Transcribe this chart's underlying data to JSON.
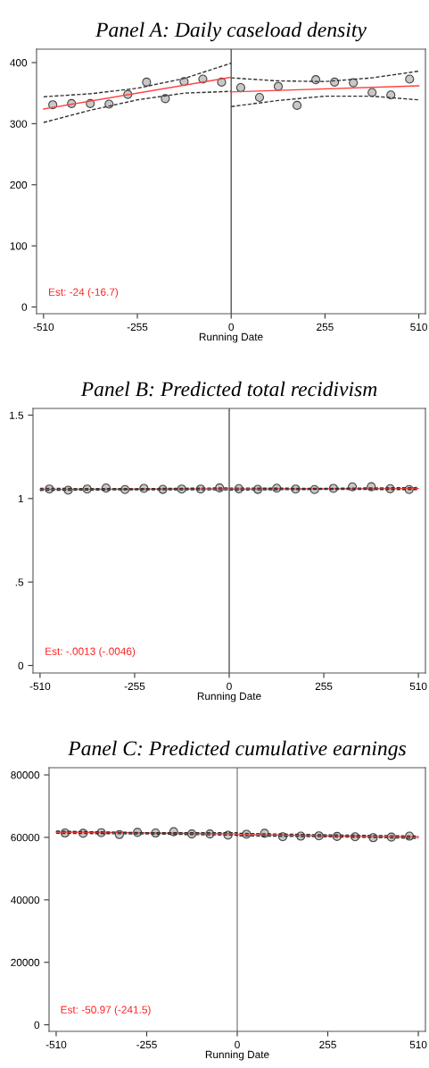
{
  "chart_data": [
    {
      "type": "scatter",
      "title": "Panel A: Daily caseload density",
      "xlabel": "Running Date",
      "xlim": [
        -529,
        528
      ],
      "ylim": [
        -11,
        422
      ],
      "xticks": [
        -510,
        -255,
        0,
        255,
        510
      ],
      "yticks": [
        0,
        100,
        200,
        300,
        400
      ],
      "annotations": [
        "Est: -24 (-16.7)"
      ],
      "ref_lines": [
        {
          "axis": "x",
          "value": 0,
          "color": "#555555"
        }
      ],
      "series": [
        {
          "marker": "circle",
          "color": "#c8c8c8",
          "x": [
            -485,
            -434,
            -383,
            -332,
            -281,
            -230,
            -179,
            -128,
            -77,
            -26,
            26,
            77,
            128,
            179,
            230,
            281,
            332,
            383,
            434,
            485
          ],
          "values": [
            331,
            333,
            333,
            332,
            348,
            368,
            341,
            369,
            373,
            368,
            359,
            343,
            361,
            330,
            372,
            368,
            367,
            351,
            347,
            373
          ]
        },
        {
          "type": "line",
          "color": "#ff4040",
          "line_style": "solid",
          "x": [
            -510,
            0
          ],
          "values": [
            324,
            376
          ]
        },
        {
          "type": "line",
          "color": "#333333",
          "line_style": "dashed",
          "x": [
            -510,
            -383,
            -255,
            -128,
            0
          ],
          "values": [
            344,
            349,
            358,
            374,
            399
          ]
        },
        {
          "type": "line",
          "color": "#333333",
          "line_style": "dashed",
          "x": [
            -510,
            -383,
            -255,
            -128,
            0
          ],
          "values": [
            302,
            322,
            339,
            350,
            353
          ]
        },
        {
          "type": "line",
          "color": "#ff4040",
          "line_style": "solid",
          "x": [
            0,
            510
          ],
          "values": [
            352,
            362
          ]
        },
        {
          "type": "line",
          "color": "#333333",
          "line_style": "dashed",
          "x": [
            0,
            128,
            255,
            383,
            510
          ],
          "values": [
            375,
            370,
            369,
            375,
            386
          ]
        },
        {
          "type": "line",
          "color": "#333333",
          "line_style": "dashed",
          "x": [
            0,
            128,
            255,
            383,
            510
          ],
          "values": [
            328,
            338,
            345,
            345,
            339
          ]
        }
      ]
    },
    {
      "type": "scatter",
      "title": "Panel B: Predicted total recidivism",
      "xlabel": "Running Date",
      "xlim": [
        -529,
        529
      ],
      "ylim": [
        -0.045,
        1.54
      ],
      "xticks": [
        -510,
        -255,
        0,
        255,
        510
      ],
      "yticks": [
        0,
        {
          "value": 0.5,
          "label": ".5"
        },
        1,
        1.5
      ],
      "annotations": [
        "Est: -.0013 (-.0046)"
      ],
      "ref_lines": [
        {
          "axis": "x",
          "value": 0,
          "color": "#555555"
        }
      ],
      "series": [
        {
          "marker": "circle",
          "color": "#c8c8c8",
          "x": [
            -485,
            -434,
            -383,
            -332,
            -281,
            -230,
            -179,
            -128,
            -77,
            -26,
            26,
            77,
            128,
            179,
            230,
            281,
            332,
            383,
            434,
            485
          ],
          "values": [
            1.057,
            1.05,
            1.057,
            1.063,
            1.054,
            1.061,
            1.055,
            1.057,
            1.057,
            1.064,
            1.059,
            1.055,
            1.062,
            1.057,
            1.054,
            1.061,
            1.07,
            1.071,
            1.059,
            1.054
          ]
        },
        {
          "type": "line",
          "color": "#ff4040",
          "line_style": "solid",
          "x": [
            -510,
            0,
            0,
            510
          ],
          "values": [
            1.055,
            1.058,
            1.057,
            1.06
          ]
        },
        {
          "type": "line",
          "color": "#333333",
          "line_style": "dashed",
          "x": [
            -510,
            -255,
            0,
            0,
            255,
            510
          ],
          "values": [
            1.061,
            1.059,
            1.064,
            1.063,
            1.061,
            1.066
          ]
        },
        {
          "type": "line",
          "color": "#333333",
          "line_style": "dashed",
          "x": [
            -510,
            -255,
            0,
            0,
            255,
            510
          ],
          "values": [
            1.049,
            1.053,
            1.052,
            1.051,
            1.055,
            1.054
          ]
        }
      ]
    },
    {
      "type": "scatter",
      "title": "Panel C: Predicted cumulative earnings",
      "xlabel": "Running Date",
      "xlim": [
        -530,
        530
      ],
      "ylim": [
        -2100,
        82300
      ],
      "xticks": [
        -510,
        -255,
        0,
        255,
        510
      ],
      "yticks": [
        0,
        20000,
        40000,
        60000,
        80000
      ],
      "annotations": [
        "Est: -50.97 (-241.5)"
      ],
      "ref_lines": [
        {
          "axis": "x",
          "value": 0,
          "color": "#888888"
        }
      ],
      "series": [
        {
          "marker": "circle",
          "color": "#c8c8c8",
          "x": [
            -485,
            -434,
            -383,
            -332,
            -281,
            -230,
            -179,
            -128,
            -77,
            -26,
            26,
            77,
            128,
            179,
            230,
            281,
            332,
            383,
            434,
            485
          ],
          "values": [
            61400,
            61300,
            61500,
            60900,
            61600,
            61400,
            61800,
            61100,
            61100,
            60700,
            61000,
            61300,
            60200,
            60400,
            60500,
            60300,
            60200,
            59900,
            60100,
            60400
          ]
        },
        {
          "type": "line",
          "color": "#ff4040",
          "line_style": "solid",
          "x": [
            -510,
            0,
            0,
            510
          ],
          "values": [
            61700,
            61100,
            60900,
            60100
          ]
        },
        {
          "type": "line",
          "color": "#333333",
          "line_style": "dashed",
          "x": [
            -510,
            -255,
            0,
            0,
            255,
            510
          ],
          "values": [
            62000,
            61500,
            61500,
            61300,
            60800,
            60400
          ]
        },
        {
          "type": "line",
          "color": "#333333",
          "line_style": "dashed",
          "x": [
            -510,
            -255,
            0,
            0,
            255,
            510
          ],
          "values": [
            61300,
            61100,
            60700,
            60500,
            60200,
            59700
          ]
        }
      ]
    }
  ]
}
